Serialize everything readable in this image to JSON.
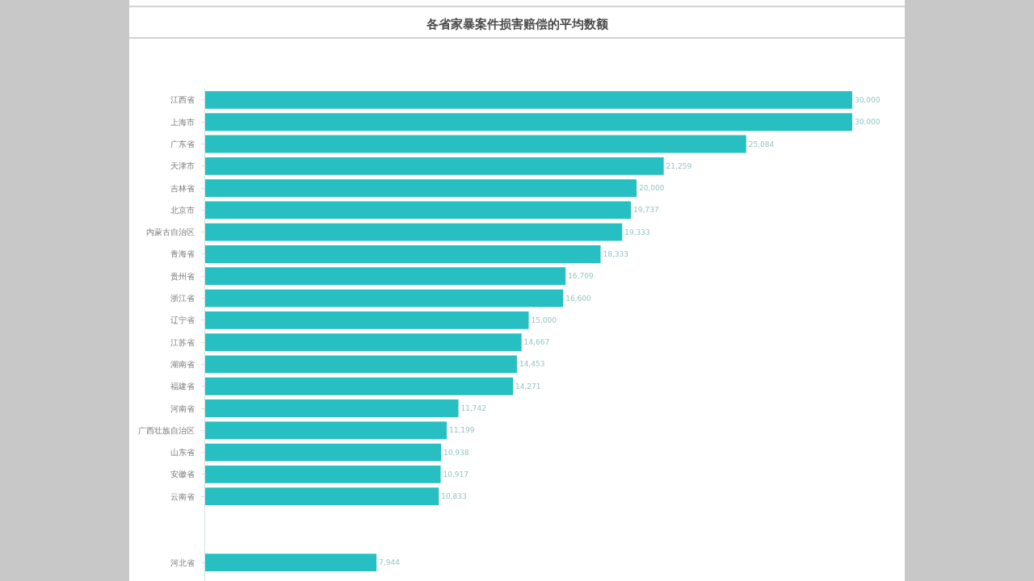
{
  "chart_data": {
    "type": "bar",
    "orientation": "horizontal",
    "title": "各省家暴案件损害赔偿的平均数额",
    "categories": [
      "江西省",
      "上海市",
      "广东省",
      "天津市",
      "吉林省",
      "北京市",
      "内蒙古自治区",
      "青海省",
      "贵州省",
      "浙江省",
      "辽宁省",
      "江苏省",
      "湖南省",
      "福建省",
      "河南省",
      "广西壮族自治区",
      "山东省",
      "安徽省",
      "云南省",
      null,
      null,
      "河北省"
    ],
    "values": [
      30000,
      30000,
      25084,
      21259,
      20000,
      19737,
      19333,
      18333,
      16709,
      16600,
      15000,
      14667,
      14453,
      14271,
      11742,
      11199,
      10938,
      10917,
      10833,
      null,
      null,
      7944
    ],
    "value_labels": [
      "30,000",
      "30,000",
      "25,084",
      "21,259",
      "20,000",
      "19,737",
      "19,333",
      "18,333",
      "16,709",
      "16,600",
      "15,000",
      "14,667",
      "14,453",
      "14,271",
      "11,742",
      "11,199",
      "10,938",
      "10,917",
      "10,833",
      null,
      null,
      "7,944"
    ],
    "color": "#27bfc1"
  }
}
